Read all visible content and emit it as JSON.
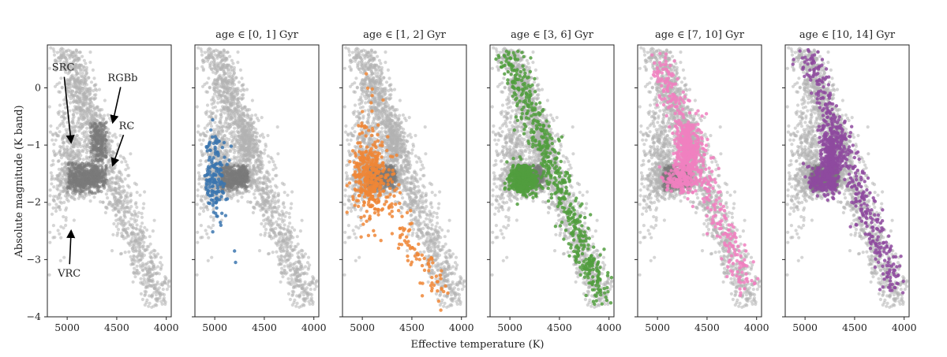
{
  "chart_data": {
    "type": "scatter",
    "xlabel": "Effective temperature (K)",
    "ylabel": "Absolute magnitude (K band)",
    "xlim": [
      5200,
      3950
    ],
    "ylim": [
      0.75,
      -4.0
    ],
    "x_ticks": [
      5000,
      4500,
      4000
    ],
    "x_tick_labels": [
      "5000",
      "4500",
      "4000"
    ],
    "y_ticks": [
      0,
      -1,
      -2,
      -3,
      -4
    ],
    "y_tick_labels": [
      "0",
      "−1",
      "−2",
      "−3",
      "−4"
    ],
    "background_color": "#b3b3b3",
    "background_dark_color": "#7a7a7a",
    "grid": false,
    "panels": [
      {
        "title": "",
        "color": "#8c8c8c"
      },
      {
        "title": "age ∈ [0, 1] Gyr",
        "color": "#3b75af",
        "age_range": [
          0,
          1
        ]
      },
      {
        "title": "age ∈ [1, 2] Gyr",
        "color": "#ef8636",
        "age_range": [
          1,
          2
        ]
      },
      {
        "title": "age ∈ [3, 6] Gyr",
        "color": "#519e3e",
        "age_range": [
          3,
          6
        ]
      },
      {
        "title": "age ∈ [7, 10] Gyr",
        "color": "#f080c0",
        "age_range": [
          7,
          10
        ]
      },
      {
        "title": "age ∈ [10, 14] Gyr",
        "color": "#8e4a9f",
        "age_range": [
          10,
          14
        ]
      }
    ],
    "annotations": [
      {
        "label": "VRC",
        "text_at": [
          4980,
          -3.3
        ],
        "arrow_to": [
          4960,
          -2.5
        ]
      },
      {
        "label": "SRC",
        "text_at": [
          5040,
          0.3
        ],
        "arrow_to": [
          4960,
          -0.95
        ]
      },
      {
        "label": "RC",
        "text_at": [
          4400,
          -0.72
        ],
        "arrow_to": [
          4540,
          -1.35
        ]
      },
      {
        "label": "RGBb",
        "text_at": [
          4440,
          0.12
        ],
        "arrow_to": [
          4540,
          -0.6
        ]
      }
    ]
  }
}
